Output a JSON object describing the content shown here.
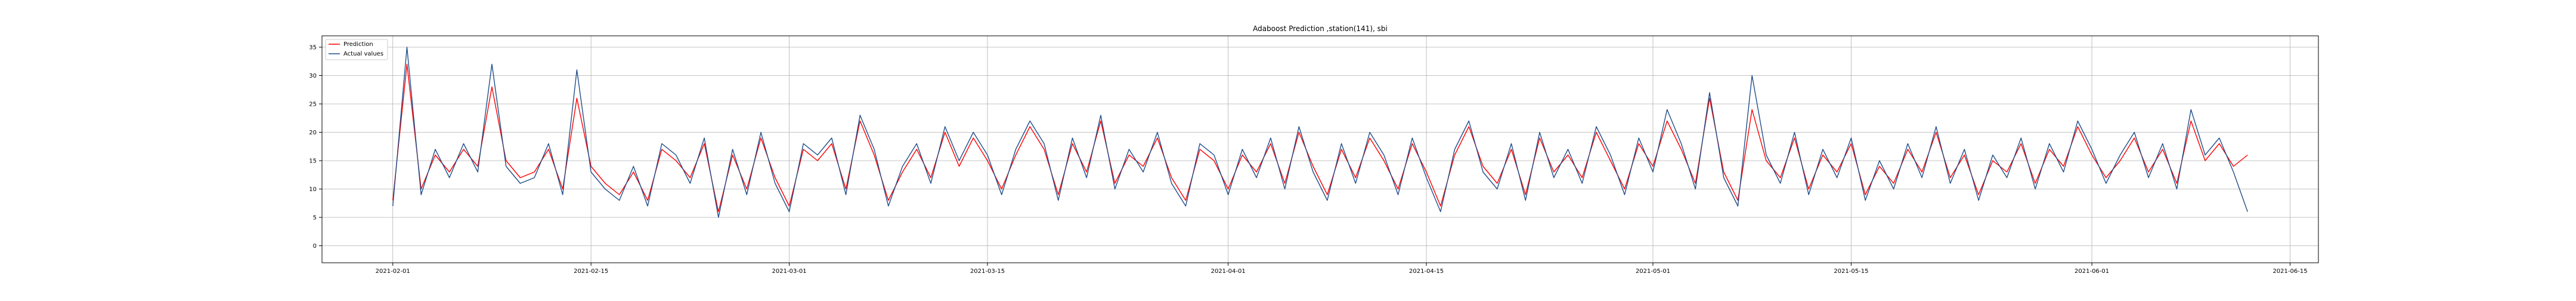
{
  "chart_data": {
    "type": "line",
    "title": "Adaboost Prediction ,station(141), sbi",
    "xlabel": "",
    "ylabel": "",
    "x_range": [
      "2021-01-27",
      "2021-06-17"
    ],
    "ylim": [
      -3,
      37
    ],
    "y_ticks": [
      0,
      5,
      10,
      15,
      20,
      25,
      30,
      35
    ],
    "x_ticks": [
      "2021-02-01",
      "2021-02-15",
      "2021-03-01",
      "2021-03-15",
      "2021-04-01",
      "2021-04-15",
      "2021-05-01",
      "2021-05-15",
      "2021-06-01",
      "2021-06-15"
    ],
    "x_tick_labels": [
      "2021-02-01",
      "2021-02-15",
      "2021-03-01",
      "2021-03-15",
      "2021-04-01",
      "2021-04-15",
      "2021-05-01",
      "2021-05-15",
      "2021-06-01",
      "2021-06-15"
    ],
    "grid": true,
    "legend_position": "upper-left",
    "series": [
      {
        "name": "Prediction",
        "color": "#ff0000",
        "x": [
          "2021-02-01",
          "2021-02-02",
          "2021-02-03",
          "2021-02-04",
          "2021-02-05",
          "2021-02-06",
          "2021-02-07",
          "2021-02-08",
          "2021-02-09",
          "2021-02-10",
          "2021-02-11",
          "2021-02-12",
          "2021-02-13",
          "2021-02-14",
          "2021-02-15",
          "2021-02-16",
          "2021-02-17",
          "2021-02-18",
          "2021-02-19",
          "2021-02-20",
          "2021-02-21",
          "2021-02-22",
          "2021-02-23",
          "2021-02-24",
          "2021-02-25",
          "2021-02-26",
          "2021-02-27",
          "2021-02-28",
          "2021-03-01",
          "2021-03-02",
          "2021-03-03",
          "2021-03-04",
          "2021-03-05",
          "2021-03-06",
          "2021-03-07",
          "2021-03-08",
          "2021-03-09",
          "2021-03-10",
          "2021-03-11",
          "2021-03-12",
          "2021-03-13",
          "2021-03-14",
          "2021-03-15",
          "2021-03-16",
          "2021-03-17",
          "2021-03-18",
          "2021-03-19",
          "2021-03-20",
          "2021-03-21",
          "2021-03-22",
          "2021-03-23",
          "2021-03-24",
          "2021-03-25",
          "2021-03-26",
          "2021-03-27",
          "2021-03-28",
          "2021-03-29",
          "2021-03-30",
          "2021-03-31",
          "2021-04-01",
          "2021-04-02",
          "2021-04-03",
          "2021-04-04",
          "2021-04-05",
          "2021-04-06",
          "2021-04-07",
          "2021-04-08",
          "2021-04-09",
          "2021-04-10",
          "2021-04-11",
          "2021-04-12",
          "2021-04-13",
          "2021-04-14",
          "2021-04-15",
          "2021-04-16",
          "2021-04-17",
          "2021-04-18",
          "2021-04-19",
          "2021-04-20",
          "2021-04-21",
          "2021-04-22",
          "2021-04-23",
          "2021-04-24",
          "2021-04-25",
          "2021-04-26",
          "2021-04-27",
          "2021-04-28",
          "2021-04-29",
          "2021-04-30",
          "2021-05-01",
          "2021-05-02",
          "2021-05-03",
          "2021-05-04",
          "2021-05-05",
          "2021-05-06",
          "2021-05-07",
          "2021-05-08",
          "2021-05-09",
          "2021-05-10",
          "2021-05-11",
          "2021-05-12",
          "2021-05-13",
          "2021-05-14",
          "2021-05-15",
          "2021-05-16",
          "2021-05-17",
          "2021-05-18",
          "2021-05-19",
          "2021-05-20",
          "2021-05-21",
          "2021-05-22",
          "2021-05-23",
          "2021-05-24",
          "2021-05-25",
          "2021-05-26",
          "2021-05-27",
          "2021-05-28",
          "2021-05-29",
          "2021-05-30",
          "2021-05-31",
          "2021-06-01",
          "2021-06-02",
          "2021-06-03",
          "2021-06-04",
          "2021-06-05",
          "2021-06-06",
          "2021-06-07",
          "2021-06-08",
          "2021-06-09",
          "2021-06-10",
          "2021-06-11",
          "2021-06-12"
        ],
        "values": [
          8,
          32,
          10,
          16,
          13,
          17,
          14,
          28,
          15,
          12,
          13,
          17,
          10,
          26,
          14,
          11,
          9,
          13,
          8,
          17,
          15,
          12,
          18,
          6,
          16,
          10,
          19,
          12,
          7,
          17,
          15,
          18,
          10,
          22,
          16,
          8,
          13,
          17,
          12,
          20,
          14,
          19,
          15,
          10,
          16,
          21,
          17,
          9,
          18,
          13,
          22,
          11,
          16,
          14,
          19,
          12,
          8,
          17,
          15,
          10,
          16,
          13,
          18,
          11,
          20,
          14,
          9,
          17,
          12,
          19,
          15,
          10,
          18,
          13,
          7,
          16,
          21,
          14,
          11,
          17,
          9,
          19,
          13,
          16,
          12,
          20,
          15,
          10,
          18,
          14,
          22,
          17,
          11,
          26,
          13,
          8,
          24,
          15,
          12,
          19,
          10,
          16,
          13,
          18,
          9,
          14,
          11,
          17,
          13,
          20,
          12,
          16,
          9,
          15,
          13,
          18,
          11,
          17,
          14,
          21,
          16,
          12,
          15,
          19,
          13,
          17,
          11,
          22,
          15,
          18,
          14,
          16
        ]
      },
      {
        "name": "Actual values",
        "color": "#1f4e8c",
        "x": [
          "2021-02-01",
          "2021-02-02",
          "2021-02-03",
          "2021-02-04",
          "2021-02-05",
          "2021-02-06",
          "2021-02-07",
          "2021-02-08",
          "2021-02-09",
          "2021-02-10",
          "2021-02-11",
          "2021-02-12",
          "2021-02-13",
          "2021-02-14",
          "2021-02-15",
          "2021-02-16",
          "2021-02-17",
          "2021-02-18",
          "2021-02-19",
          "2021-02-20",
          "2021-02-21",
          "2021-02-22",
          "2021-02-23",
          "2021-02-24",
          "2021-02-25",
          "2021-02-26",
          "2021-02-27",
          "2021-02-28",
          "2021-03-01",
          "2021-03-02",
          "2021-03-03",
          "2021-03-04",
          "2021-03-05",
          "2021-03-06",
          "2021-03-07",
          "2021-03-08",
          "2021-03-09",
          "2021-03-10",
          "2021-03-11",
          "2021-03-12",
          "2021-03-13",
          "2021-03-14",
          "2021-03-15",
          "2021-03-16",
          "2021-03-17",
          "2021-03-18",
          "2021-03-19",
          "2021-03-20",
          "2021-03-21",
          "2021-03-22",
          "2021-03-23",
          "2021-03-24",
          "2021-03-25",
          "2021-03-26",
          "2021-03-27",
          "2021-03-28",
          "2021-03-29",
          "2021-03-30",
          "2021-03-31",
          "2021-04-01",
          "2021-04-02",
          "2021-04-03",
          "2021-04-04",
          "2021-04-05",
          "2021-04-06",
          "2021-04-07",
          "2021-04-08",
          "2021-04-09",
          "2021-04-10",
          "2021-04-11",
          "2021-04-12",
          "2021-04-13",
          "2021-04-14",
          "2021-04-15",
          "2021-04-16",
          "2021-04-17",
          "2021-04-18",
          "2021-04-19",
          "2021-04-20",
          "2021-04-21",
          "2021-04-22",
          "2021-04-23",
          "2021-04-24",
          "2021-04-25",
          "2021-04-26",
          "2021-04-27",
          "2021-04-28",
          "2021-04-29",
          "2021-04-30",
          "2021-05-01",
          "2021-05-02",
          "2021-05-03",
          "2021-05-04",
          "2021-05-05",
          "2021-05-06",
          "2021-05-07",
          "2021-05-08",
          "2021-05-09",
          "2021-05-10",
          "2021-05-11",
          "2021-05-12",
          "2021-05-13",
          "2021-05-14",
          "2021-05-15",
          "2021-05-16",
          "2021-05-17",
          "2021-05-18",
          "2021-05-19",
          "2021-05-20",
          "2021-05-21",
          "2021-05-22",
          "2021-05-23",
          "2021-05-24",
          "2021-05-25",
          "2021-05-26",
          "2021-05-27",
          "2021-05-28",
          "2021-05-29",
          "2021-05-30",
          "2021-05-31",
          "2021-06-01",
          "2021-06-02",
          "2021-06-03",
          "2021-06-04",
          "2021-06-05",
          "2021-06-06",
          "2021-06-07",
          "2021-06-08",
          "2021-06-09",
          "2021-06-10",
          "2021-06-11",
          "2021-06-12"
        ],
        "values": [
          7,
          35,
          9,
          17,
          12,
          18,
          13,
          32,
          14,
          11,
          12,
          18,
          9,
          31,
          13,
          10,
          8,
          14,
          7,
          18,
          16,
          11,
          19,
          5,
          17,
          9,
          20,
          11,
          6,
          18,
          16,
          19,
          9,
          23,
          17,
          7,
          14,
          18,
          11,
          21,
          15,
          20,
          16,
          9,
          17,
          22,
          18,
          8,
          19,
          12,
          23,
          10,
          17,
          13,
          20,
          11,
          7,
          18,
          16,
          9,
          17,
          12,
          19,
          10,
          21,
          13,
          8,
          18,
          11,
          20,
          16,
          9,
          19,
          12,
          6,
          17,
          22,
          13,
          10,
          18,
          8,
          20,
          12,
          17,
          11,
          21,
          16,
          9,
          19,
          13,
          24,
          18,
          10,
          27,
          12,
          7,
          30,
          16,
          11,
          20,
          9,
          17,
          12,
          19,
          8,
          15,
          10,
          18,
          12,
          21,
          11,
          17,
          8,
          16,
          12,
          19,
          10,
          18,
          13,
          22,
          17,
          11,
          16,
          20,
          12,
          18,
          10,
          24,
          16,
          19,
          13,
          6
        ]
      }
    ]
  }
}
